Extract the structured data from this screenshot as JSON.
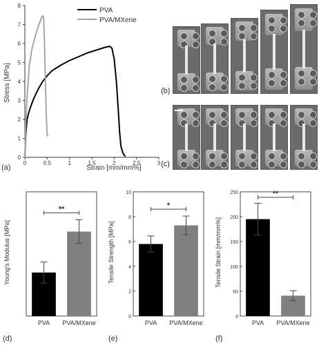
{
  "panel_labels": {
    "a": "(a)",
    "b": "(b)",
    "c": "(c)",
    "d": "(d)",
    "e": "(e)",
    "f": "(f)"
  },
  "chart_data": [
    {
      "type": "line",
      "panel": "(a)",
      "xlabel": "Strain [mm/mm%]",
      "ylabel": "Stress [MPa]",
      "xlim": [
        0,
        3
      ],
      "ylim": [
        0,
        8
      ],
      "xticks": [
        "0",
        "0.5",
        "1",
        "1.5",
        "2",
        "2.5",
        "3"
      ],
      "yticks": [
        "0",
        "1",
        "2",
        "3",
        "4",
        "5",
        "6",
        "7",
        "8"
      ],
      "legend_position": "top-right",
      "grid": false,
      "series": [
        {
          "name": "PVA",
          "color": "#000000",
          "x": [
            0,
            0.02,
            0.05,
            0.08,
            0.1,
            0.15,
            0.2,
            0.3,
            0.4,
            0.5,
            0.6,
            0.8,
            1.0,
            1.2,
            1.4,
            1.6,
            1.8,
            1.9,
            1.95,
            2.0,
            2.05,
            2.1,
            2.12,
            2.15,
            2.2,
            2.25
          ],
          "y": [
            0,
            1.2,
            2.0,
            2.3,
            2.45,
            2.8,
            3.1,
            3.6,
            4.0,
            4.3,
            4.55,
            4.85,
            5.1,
            5.3,
            5.5,
            5.65,
            5.8,
            5.85,
            5.75,
            5.2,
            4.0,
            2.2,
            1.4,
            0.6,
            0.2,
            0.05
          ]
        },
        {
          "name": "PVA/MXene",
          "color": "#a6a6a6",
          "x": [
            0,
            0.02,
            0.05,
            0.1,
            0.15,
            0.2,
            0.25,
            0.3,
            0.35,
            0.38,
            0.4,
            0.42,
            0.44,
            0.46,
            0.48,
            0.5,
            0.52
          ],
          "y": [
            0,
            1.8,
            3.2,
            4.8,
            5.6,
            6.1,
            6.5,
            6.9,
            7.2,
            7.4,
            7.45,
            7.4,
            6.0,
            4.0,
            2.2,
            1.2,
            1.1
          ]
        }
      ]
    },
    {
      "type": "bar",
      "panel": "(d)",
      "ylabel": "Young's Modulus [MPa]",
      "categories": [
        "PVA",
        "PVA/MXene"
      ],
      "values": [
        70,
        136
      ],
      "errors": [
        17,
        19
      ],
      "colors": [
        "#000000",
        "#808080"
      ],
      "ylim": [
        0,
        200
      ],
      "yticks": [],
      "significance": "**"
    },
    {
      "type": "bar",
      "panel": "(e)",
      "ylabel": "Tensile Strength [MPa]",
      "categories": [
        "PVA",
        "PVA/MXene"
      ],
      "values": [
        5.8,
        7.3
      ],
      "errors": [
        0.65,
        0.75
      ],
      "colors": [
        "#000000",
        "#808080"
      ],
      "ylim": [
        0,
        10
      ],
      "yticks": [
        "0",
        "2",
        "4",
        "6",
        "8",
        "10"
      ],
      "significance": "*"
    },
    {
      "type": "bar",
      "panel": "(f)",
      "ylabel": "Tensile Strain [mm/mm%]",
      "categories": [
        "PVA",
        "PVA/MXene"
      ],
      "values": [
        195,
        41
      ],
      "errors": [
        32,
        10
      ],
      "colors": [
        "#000000",
        "#808080"
      ],
      "ylim": [
        0,
        250
      ],
      "yticks": [
        "0",
        "50",
        "100",
        "150",
        "200",
        "250"
      ],
      "significance": "**"
    }
  ]
}
